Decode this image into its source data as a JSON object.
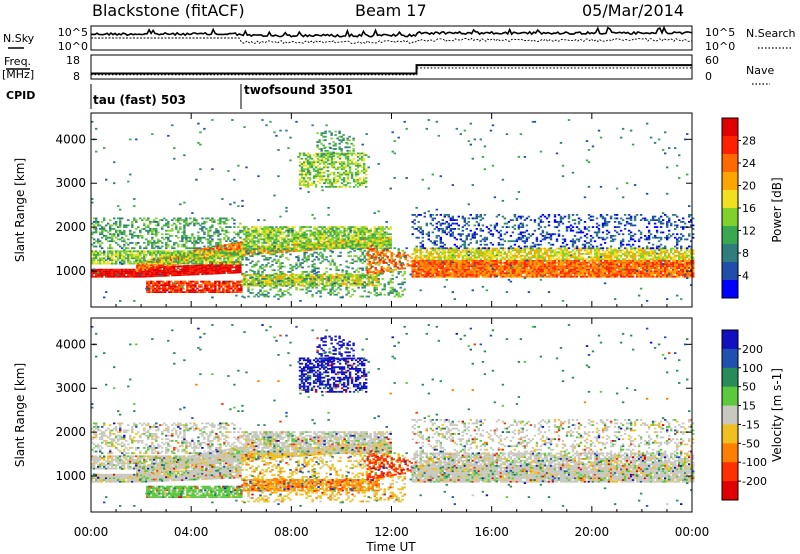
{
  "header": {
    "station": "Blackstone (fitACF)",
    "beam": "Beam 17",
    "date": "05/Mar/2014"
  },
  "noise_panel": {
    "left_label": "N.Sky",
    "right_label": "N.Search",
    "left_ticks": [
      "10^5",
      "10^0"
    ],
    "right_ticks": [
      "10^5",
      "10^0"
    ]
  },
  "freq_panel": {
    "left_label_1": "Freq.",
    "left_label_2": "[MHz]",
    "right_label": "Nave",
    "left_ticks": [
      "18",
      "8"
    ],
    "right_ticks": [
      "60",
      "0"
    ]
  },
  "cpid_panel": {
    "label": "CPID",
    "programs": [
      {
        "name": "tau (fast) 503",
        "start_hour": 0
      },
      {
        "name": "twofsound 3501",
        "start_hour": 6
      }
    ]
  },
  "x_axis": {
    "label": "Time UT",
    "ticks": [
      "00:00",
      "04:00",
      "08:00",
      "12:00",
      "16:00",
      "20:00",
      "00:00"
    ]
  },
  "power_panel": {
    "ylabel": "Slant Range [km]",
    "yticks": [
      "4000",
      "3000",
      "2000",
      "1000"
    ],
    "colorbar_label": "Power [dB]",
    "colorbar_ticks": [
      "28",
      "24",
      "20",
      "16",
      "12",
      "8",
      "4"
    ],
    "colors": [
      "#0000ff",
      "#1f4fa8",
      "#2f7d7d",
      "#3aa84f",
      "#7fd12c",
      "#f0e020",
      "#ffa500",
      "#ff6a00",
      "#ff2000",
      "#e00000"
    ]
  },
  "velocity_panel": {
    "ylabel": "Slant Range [km]",
    "yticks": [
      "4000",
      "3000",
      "2000",
      "1000"
    ],
    "colorbar_label": "Velocity [m s-1]",
    "colorbar_ticks": [
      "200",
      "100",
      "50",
      "15",
      "-15",
      "-50",
      "-100",
      "-200"
    ],
    "colors": [
      "#1010c0",
      "#2050b0",
      "#2a8a5a",
      "#5cc83c",
      "#c8c8c0",
      "#f0c020",
      "#ff8000",
      "#ff3000",
      "#e00000"
    ]
  },
  "chart_data": {
    "type": "heatmap",
    "x_range_hours": [
      0,
      24
    ],
    "y_range_km": [
      180,
      4600
    ],
    "power_colorbar_range_db": [
      0,
      30
    ],
    "velocity_colorbar_range_ms": [
      -250,
      250
    ],
    "frequency_range_mhz": [
      8,
      18
    ],
    "nave_range": [
      0,
      60
    ]
  }
}
